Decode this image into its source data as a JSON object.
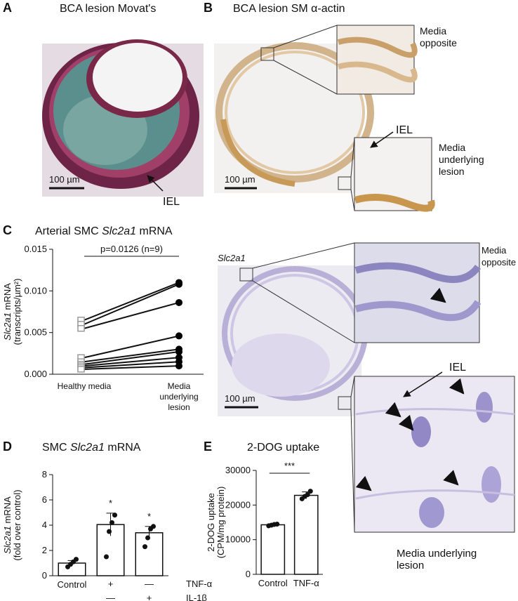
{
  "panels": {
    "A": {
      "label": "A",
      "title": "BCA lesion Movat's",
      "scale_bar": "100 µm",
      "arrow_label": "IEL"
    },
    "B": {
      "label": "B",
      "title": "BCA lesion SM α-actin",
      "scale_bar": "100 µm",
      "arrow_label": "IEL",
      "insets": [
        "Media opposite",
        "Media underlying lesion"
      ]
    },
    "C": {
      "label": "C",
      "title": [
        "Arterial SMC ",
        "Slc2a1",
        " mRNA"
      ],
      "image_title": "Slc2a1",
      "scale_bar": "100 µm",
      "arrow_label": "IEL",
      "insets": [
        "Media opposite",
        "Media underlying lesion"
      ]
    },
    "D": {
      "label": "D",
      "title": [
        "SMC ",
        "Slc2a1",
        " mRNA"
      ]
    },
    "E": {
      "label": "E",
      "title": "2-DOG uptake"
    }
  },
  "chart_data": [
    {
      "type": "paired",
      "ylabel": {
        "parts": [
          "Slc2a1",
          " mRNA"
        ],
        "units": "(transcripts/µm²)"
      },
      "categories": [
        "Healthy media",
        "Media underlying lesion"
      ],
      "annotation": "p=0.0126 (n=9)",
      "ylim": [
        0,
        0.015
      ],
      "yticks": [
        {
          "value": 0,
          "label": "0.000"
        },
        {
          "value": 0.005,
          "label": "0.005"
        },
        {
          "value": 0.01,
          "label": "0.010"
        },
        {
          "value": 0.015,
          "label": "0.015"
        }
      ],
      "values": [
        [
          0.0065,
          0.011
        ],
        [
          0.006,
          0.0108
        ],
        [
          0.0055,
          0.0086
        ],
        [
          0.002,
          0.0046
        ],
        [
          0.0015,
          0.003
        ],
        [
          0.0012,
          0.0027
        ],
        [
          0.001,
          0.002
        ],
        [
          0.0008,
          0.0015
        ],
        [
          0.0006,
          0.001
        ]
      ],
      "colors": {
        "start": "#9a9a9a",
        "end": "#000000"
      }
    },
    {
      "type": "bar_dot",
      "ylabel": {
        "parts": [
          "Slc2a1",
          " mRNA"
        ],
        "units": "(fold over control)"
      },
      "categories": [
        "Control",
        null,
        null
      ],
      "treatments": [
        {
          "name": "TNF-α",
          "marks": [
            null,
            "+",
            "—"
          ]
        },
        {
          "name": "IL-1β",
          "marks": [
            null,
            "—",
            "+"
          ]
        }
      ],
      "values": [
        1.0,
        4.05,
        3.4
      ],
      "errors": [
        0.2,
        0.9,
        0.5
      ],
      "points": [
        [
          0.7,
          0.9,
          1.1,
          1.3
        ],
        [
          1.5,
          3.5,
          4.2,
          4.8
        ],
        [
          2.3,
          3.0,
          3.7,
          3.9
        ]
      ],
      "annotations": [
        null,
        "*",
        "*"
      ],
      "ylim": [
        0,
        8
      ],
      "yticks": [
        0,
        2,
        4,
        6,
        8
      ]
    },
    {
      "type": "bar_dot",
      "ylabel": {
        "parts": [
          "2-DOG uptake"
        ],
        "units": "(CPM/mg protein)"
      },
      "categories": [
        "Control",
        "TNF-α"
      ],
      "values": [
        14300,
        22800
      ],
      "errors": [
        300,
        1000
      ],
      "points": [
        [
          14000,
          14200,
          14400,
          14500
        ],
        [
          21800,
          22500,
          23000,
          24000
        ]
      ],
      "bracket": "***",
      "ylim": [
        0,
        30000
      ],
      "yticks": [
        0,
        10000,
        20000,
        30000
      ]
    }
  ]
}
